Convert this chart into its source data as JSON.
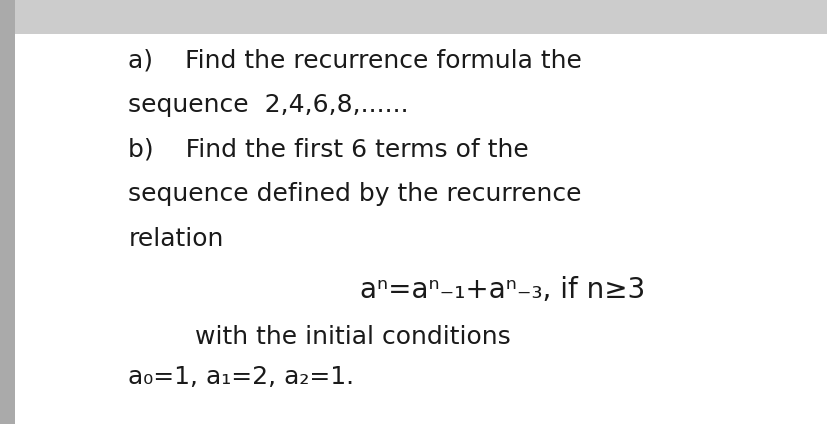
{
  "background_color": "#ffffff",
  "left_bar_color": "#aaaaaa",
  "top_bar_color": "#cccccc",
  "line_a1": "a)    Find the recurrence formula the",
  "line_a2": "sequence  2,4,6,8,......",
  "line_b1": "b)    Find the first 6 terms of the",
  "line_b2": "sequence defined by the recurrence",
  "line_b3": "relation",
  "line_formula": "aⁿ=aⁿ₋₁+aⁿ₋₃, if n≥3",
  "line_initial": "with the initial conditions",
  "line_conditions": "a₀=1, a₁=2, a₂=1.",
  "font_size_main": 18,
  "font_size_formula": 20,
  "text_color": "#1a1a1a",
  "font_family": "DejaVu Sans"
}
